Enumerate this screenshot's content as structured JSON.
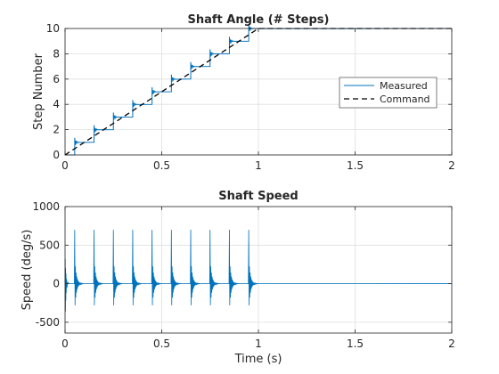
{
  "colors": {
    "measured": "#0072BD",
    "command": "#000000",
    "axes": "#262626",
    "grid": "#dfdfdf"
  },
  "chart_data": [
    {
      "type": "line",
      "title": "Shaft Angle (# Steps)",
      "xlabel": "",
      "ylabel": "Step Number",
      "xlim": [
        0,
        2
      ],
      "ylim": [
        0,
        10
      ],
      "xticks": [
        "0",
        "0.5",
        "1",
        "1.5",
        "2"
      ],
      "yticks": [
        "0",
        "2",
        "4",
        "6",
        "8",
        "10"
      ],
      "grid": true,
      "legend": {
        "placement": "right",
        "entries": [
          "Measured",
          "Command"
        ]
      },
      "series": [
        {
          "name": "Measured",
          "style": "solid",
          "note_step_times": [
            0.05,
            0.15,
            0.25,
            0.35,
            0.45,
            0.55,
            0.65,
            0.75,
            0.85,
            0.95
          ],
          "step_levels": [
            0,
            1,
            2,
            3,
            4,
            5,
            6,
            7,
            8,
            9,
            10
          ]
        },
        {
          "name": "Command",
          "style": "dashed",
          "x": [
            0,
            1,
            2
          ],
          "y": [
            0,
            10,
            10
          ]
        }
      ]
    },
    {
      "type": "line",
      "title": "Shaft Speed",
      "xlabel": "Time (s)",
      "ylabel": "Speed (deg/s)",
      "xlim": [
        0,
        2
      ],
      "ylim": [
        -640,
        1000
      ],
      "xticks": [
        "0",
        "0.5",
        "1",
        "1.5",
        "2"
      ],
      "yticks": [
        "-500",
        "0",
        "500",
        "1000"
      ],
      "grid": true,
      "series": [
        {
          "name": "Measured",
          "spike_times": [
            0.05,
            0.15,
            0.25,
            0.35,
            0.45,
            0.55,
            0.65,
            0.75,
            0.85,
            0.95
          ],
          "spike_peak": 700,
          "initial_min": -360,
          "initial_max": 320,
          "settled_value": 0
        }
      ]
    }
  ]
}
